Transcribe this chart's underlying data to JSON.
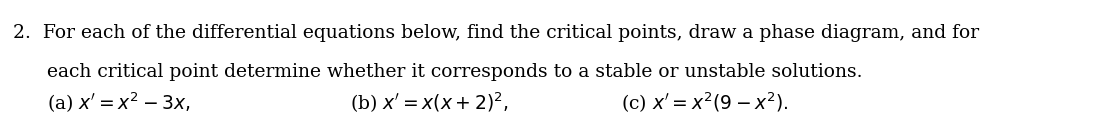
{
  "line1": "2.  For each of the differential equations below, find the critical points, draw a phase diagram, and for",
  "line2": "each critical point determine whether it corresponds to a stable or unstable solutions.",
  "part_a_prefix": "(a) ",
  "part_a_math": "x' = x^2 - 3x,",
  "part_b_prefix": "(b) ",
  "part_b_math": "x' = x(x + 2)^2,",
  "part_c_prefix": "(c) ",
  "part_c_math": "x' = x^2(9 - x^2).",
  "font_size_text": 13.5,
  "font_size_math": 13.5,
  "text_color": "#000000",
  "bg_color": "#ffffff",
  "figwidth": 10.97,
  "figheight": 1.26,
  "dpi": 100
}
